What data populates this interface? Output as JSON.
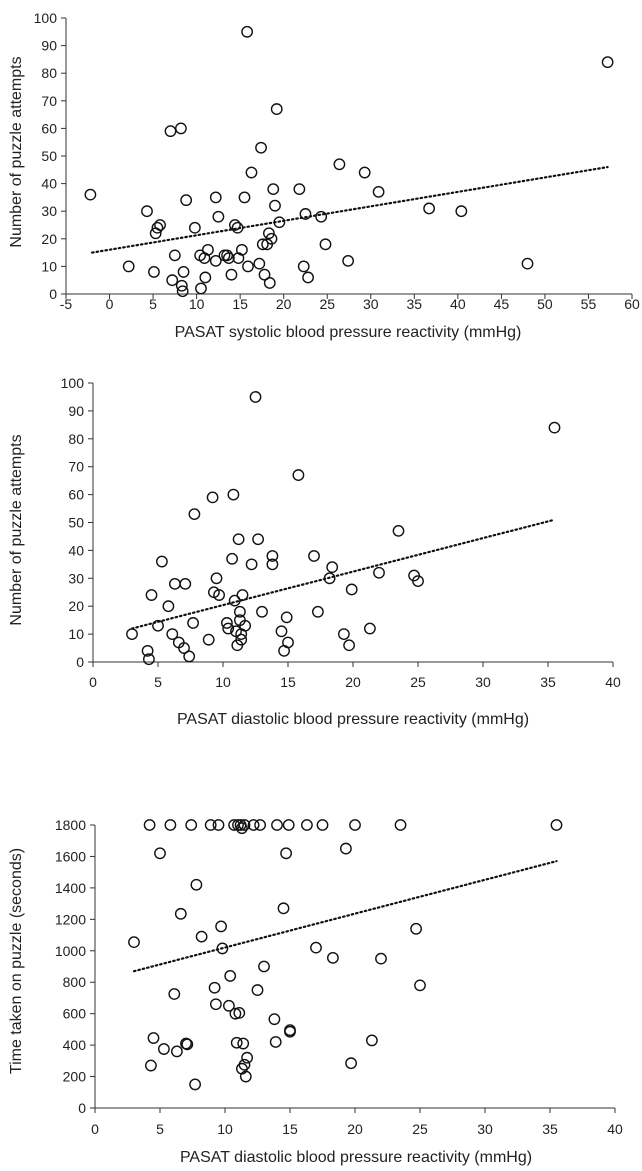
{
  "chart_data": [
    {
      "type": "scatter",
      "xlabel": "PASAT systolic blood pressure reactivity (mmHg)",
      "ylabel": "Number of  puzzle attempts",
      "xlim": [
        -5,
        60
      ],
      "ylim": [
        0,
        100
      ],
      "xticks": [
        "-5",
        "0",
        "5",
        "10",
        "15",
        "20",
        "25",
        "30",
        "35",
        "40",
        "45",
        "50",
        "55",
        "60"
      ],
      "yticks": [
        "0",
        "10",
        "20",
        "30",
        "40",
        "50",
        "60",
        "70",
        "80",
        "90",
        "100"
      ],
      "trendline": {
        "style": "dotted",
        "x": [
          -2,
          57.2
        ],
        "y": [
          15,
          46
        ]
      },
      "points": {
        "x": [
          -2.2,
          2.2,
          4.3,
          5.1,
          5.3,
          5.5,
          5.8,
          7.0,
          7.2,
          7.5,
          8.2,
          8.3,
          8.4,
          8.5,
          8.8,
          9.8,
          10.4,
          10.5,
          10.9,
          11.0,
          11.3,
          12.2,
          12.2,
          12.5,
          13.2,
          13.5,
          13.7,
          14.0,
          14.4,
          14.7,
          14.8,
          15.2,
          15.5,
          15.8,
          15.9,
          16.3,
          17.2,
          17.4,
          17.6,
          17.8,
          18.1,
          18.3,
          18.4,
          18.6,
          18.8,
          19.0,
          19.2,
          19.5,
          21.8,
          22.3,
          22.5,
          22.8,
          24.3,
          24.8,
          26.4,
          27.4,
          29.3,
          30.9,
          36.7,
          40.4,
          48.0,
          57.2
        ],
        "y": [
          36,
          10,
          30,
          8,
          22,
          24,
          25,
          59,
          5,
          14,
          60,
          3,
          1,
          8,
          34,
          24,
          14,
          2,
          13,
          6,
          16,
          12,
          35,
          28,
          14,
          14,
          13,
          7,
          25,
          24,
          13,
          16,
          35,
          95,
          10,
          44,
          11,
          53,
          18,
          7,
          18,
          22,
          4,
          20,
          38,
          32,
          67,
          26,
          38,
          10,
          29,
          6,
          28,
          18,
          47,
          12,
          44,
          37,
          31,
          30,
          11,
          84
        ]
      }
    },
    {
      "type": "scatter",
      "xlabel": "PASAT diastolic blood pressure reactivity (mmHg)",
      "ylabel": "Number of puzzle attempts",
      "xlim": [
        0,
        40
      ],
      "ylim": [
        0,
        100
      ],
      "xticks": [
        "0",
        "5",
        "10",
        "15",
        "20",
        "25",
        "30",
        "35",
        "40"
      ],
      "yticks": [
        "0",
        "10",
        "20",
        "30",
        "40",
        "50",
        "60",
        "70",
        "80",
        "90",
        "100"
      ],
      "trendline": {
        "style": "dotted",
        "x": [
          3,
          35.5
        ],
        "y": [
          12,
          51
        ]
      },
      "points": {
        "x": [
          3.0,
          4.2,
          4.3,
          4.5,
          5.0,
          5.3,
          5.8,
          6.1,
          6.3,
          6.6,
          7.0,
          7.1,
          7.4,
          7.7,
          7.8,
          8.9,
          9.2,
          9.3,
          9.5,
          9.7,
          10.3,
          10.4,
          10.7,
          10.8,
          10.9,
          11.0,
          11.1,
          11.2,
          11.3,
          11.3,
          11.4,
          11.4,
          11.5,
          11.7,
          12.2,
          12.5,
          12.7,
          13.0,
          13.8,
          13.8,
          14.5,
          14.7,
          14.9,
          15.0,
          15.8,
          17.0,
          17.3,
          18.2,
          18.4,
          19.3,
          19.7,
          19.9,
          21.3,
          22.0,
          23.5,
          24.7,
          25.0,
          35.5
        ],
        "y": [
          10,
          4,
          1,
          24,
          13,
          36,
          20,
          10,
          28,
          7,
          5,
          28,
          2,
          14,
          53,
          8,
          59,
          25,
          30,
          24,
          14,
          12,
          37,
          60,
          22,
          11,
          6,
          44,
          18,
          15,
          10,
          8,
          24,
          13,
          35,
          95,
          44,
          18,
          35,
          38,
          11,
          4,
          16,
          7,
          67,
          38,
          18,
          30,
          34,
          10,
          6,
          26,
          12,
          32,
          47,
          31,
          29,
          84
        ]
      }
    },
    {
      "type": "scatter",
      "xlabel": "PASAT diastolic blood pressure reactivity (mmHg)",
      "ylabel": "Time taken on puzzle (seconds)",
      "xlim": [
        0,
        40
      ],
      "ylim": [
        0,
        1800
      ],
      "xticks": [
        "0",
        "5",
        "10",
        "15",
        "20",
        "25",
        "30",
        "35",
        "40"
      ],
      "yticks": [
        "0",
        "200",
        "400",
        "600",
        "800",
        "1000",
        "1200",
        "1400",
        "1600",
        "1800"
      ],
      "trendline": {
        "style": "dotted",
        "x": [
          3,
          35.5
        ],
        "y": [
          870,
          1570
        ]
      },
      "points": {
        "x": [
          3.0,
          4.2,
          4.3,
          4.5,
          5.0,
          5.3,
          5.8,
          6.1,
          6.3,
          6.6,
          7.0,
          7.1,
          7.4,
          7.7,
          7.8,
          8.2,
          8.9,
          9.2,
          9.3,
          9.5,
          9.7,
          9.8,
          10.3,
          10.4,
          10.7,
          10.8,
          10.9,
          11.0,
          11.1,
          11.2,
          11.3,
          11.3,
          11.4,
          11.5,
          11.5,
          11.6,
          11.7,
          12.2,
          12.5,
          12.7,
          13.0,
          13.8,
          13.9,
          14.0,
          14.5,
          14.7,
          14.9,
          15.0,
          15.0,
          16.3,
          17.0,
          17.5,
          18.3,
          19.3,
          19.7,
          20.0,
          21.3,
          22.0,
          23.5,
          24.7,
          25.0,
          35.5
        ],
        "y": [
          1055,
          1800,
          270,
          445,
          1620,
          375,
          1800,
          725,
          360,
          1235,
          410,
          405,
          1800,
          150,
          1420,
          1090,
          1800,
          765,
          660,
          1800,
          1155,
          1015,
          650,
          840,
          1800,
          600,
          415,
          1800,
          605,
          1800,
          250,
          1780,
          410,
          275,
          1800,
          200,
          320,
          1800,
          750,
          1800,
          900,
          565,
          420,
          1800,
          1270,
          1620,
          1800,
          495,
          485,
          1800,
          1020,
          1800,
          955,
          1650,
          285,
          1800,
          430,
          950,
          1800,
          1140,
          780,
          1800
        ]
      }
    }
  ]
}
